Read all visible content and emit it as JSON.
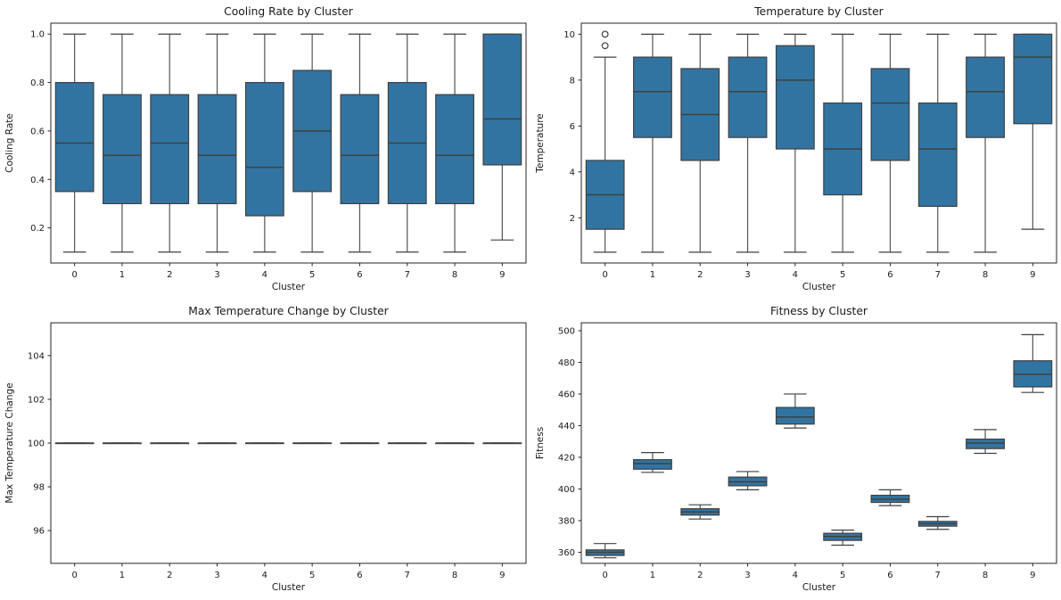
{
  "figure": {
    "background": "#ffffff"
  },
  "style": {
    "box_fill": "#3274a1",
    "box_line": "#404040",
    "whisker_color": "#555555",
    "spine_color": "#262626",
    "text_color": "#1a1a1a",
    "title_size": 12.3,
    "tick_size": 10,
    "label_size": 10.5
  },
  "chart_data": [
    {
      "id": "cooling-rate",
      "type": "boxplot",
      "title": "Cooling Rate by Cluster",
      "xlabel": "Cluster",
      "ylabel": "Cooling Rate",
      "categories": [
        "0",
        "1",
        "2",
        "3",
        "4",
        "5",
        "6",
        "7",
        "8",
        "9"
      ],
      "ylim": [
        0.055,
        1.045
      ],
      "ytick_values": [
        0.2,
        0.4,
        0.6,
        0.8,
        1.0
      ],
      "ytick_labels": [
        "0.2",
        "0.4",
        "0.6",
        "0.8",
        "1.0"
      ],
      "grid": false,
      "legend": null,
      "boxes": [
        {
          "low": 0.1,
          "q1": 0.35,
          "med": 0.55,
          "q3": 0.8,
          "high": 1.0,
          "outliers": []
        },
        {
          "low": 0.1,
          "q1": 0.3,
          "med": 0.5,
          "q3": 0.75,
          "high": 1.0,
          "outliers": []
        },
        {
          "low": 0.1,
          "q1": 0.3,
          "med": 0.55,
          "q3": 0.75,
          "high": 1.0,
          "outliers": []
        },
        {
          "low": 0.1,
          "q1": 0.3,
          "med": 0.5,
          "q3": 0.75,
          "high": 1.0,
          "outliers": []
        },
        {
          "low": 0.1,
          "q1": 0.25,
          "med": 0.45,
          "q3": 0.8,
          "high": 1.0,
          "outliers": []
        },
        {
          "low": 0.1,
          "q1": 0.35,
          "med": 0.6,
          "q3": 0.85,
          "high": 1.0,
          "outliers": []
        },
        {
          "low": 0.1,
          "q1": 0.3,
          "med": 0.5,
          "q3": 0.75,
          "high": 1.0,
          "outliers": []
        },
        {
          "low": 0.1,
          "q1": 0.3,
          "med": 0.55,
          "q3": 0.8,
          "high": 1.0,
          "outliers": []
        },
        {
          "low": 0.1,
          "q1": 0.3,
          "med": 0.5,
          "q3": 0.75,
          "high": 1.0,
          "outliers": []
        },
        {
          "low": 0.15,
          "q1": 0.46,
          "med": 0.65,
          "q3": 1.0,
          "high": 1.0,
          "outliers": []
        }
      ]
    },
    {
      "id": "temperature",
      "type": "boxplot",
      "title": "Temperature by Cluster",
      "xlabel": "Cluster",
      "ylabel": "Temperature",
      "categories": [
        "0",
        "1",
        "2",
        "3",
        "4",
        "5",
        "6",
        "7",
        "8",
        "9"
      ],
      "ylim": [
        0.03,
        10.48
      ],
      "ytick_values": [
        2,
        4,
        6,
        8,
        10
      ],
      "ytick_labels": [
        "2",
        "4",
        "6",
        "8",
        "10"
      ],
      "grid": false,
      "legend": null,
      "boxes": [
        {
          "low": 0.5,
          "q1": 1.5,
          "med": 3.0,
          "q3": 4.5,
          "high": 9.0,
          "outliers": [
            9.5,
            10.0
          ]
        },
        {
          "low": 0.5,
          "q1": 5.5,
          "med": 7.5,
          "q3": 9.0,
          "high": 10.0,
          "outliers": []
        },
        {
          "low": 0.5,
          "q1": 4.5,
          "med": 6.5,
          "q3": 8.5,
          "high": 10.0,
          "outliers": []
        },
        {
          "low": 0.5,
          "q1": 5.5,
          "med": 7.5,
          "q3": 9.0,
          "high": 10.0,
          "outliers": []
        },
        {
          "low": 0.5,
          "q1": 5.0,
          "med": 8.0,
          "q3": 9.5,
          "high": 10.0,
          "outliers": []
        },
        {
          "low": 0.5,
          "q1": 3.0,
          "med": 5.0,
          "q3": 7.0,
          "high": 10.0,
          "outliers": []
        },
        {
          "low": 0.5,
          "q1": 4.5,
          "med": 7.0,
          "q3": 8.5,
          "high": 10.0,
          "outliers": []
        },
        {
          "low": 0.5,
          "q1": 2.5,
          "med": 5.0,
          "q3": 7.0,
          "high": 10.0,
          "outliers": []
        },
        {
          "low": 0.5,
          "q1": 5.5,
          "med": 7.5,
          "q3": 9.0,
          "high": 10.0,
          "outliers": []
        },
        {
          "low": 1.5,
          "q1": 6.1,
          "med": 9.0,
          "q3": 10.0,
          "high": 10.0,
          "outliers": []
        }
      ]
    },
    {
      "id": "max-temperature-change",
      "type": "boxplot",
      "title": "Max Temperature Change by Cluster",
      "xlabel": "Cluster",
      "ylabel": "Max Temperature Change",
      "categories": [
        "0",
        "1",
        "2",
        "3",
        "4",
        "5",
        "6",
        "7",
        "8",
        "9"
      ],
      "ylim": [
        94.5,
        105.5
      ],
      "ytick_values": [
        96,
        98,
        100,
        102,
        104
      ],
      "ytick_labels": [
        "96",
        "98",
        "100",
        "102",
        "104"
      ],
      "grid": false,
      "legend": null,
      "boxes": [
        {
          "low": 100,
          "q1": 100,
          "med": 100,
          "q3": 100,
          "high": 100,
          "outliers": []
        },
        {
          "low": 100,
          "q1": 100,
          "med": 100,
          "q3": 100,
          "high": 100,
          "outliers": []
        },
        {
          "low": 100,
          "q1": 100,
          "med": 100,
          "q3": 100,
          "high": 100,
          "outliers": []
        },
        {
          "low": 100,
          "q1": 100,
          "med": 100,
          "q3": 100,
          "high": 100,
          "outliers": []
        },
        {
          "low": 100,
          "q1": 100,
          "med": 100,
          "q3": 100,
          "high": 100,
          "outliers": []
        },
        {
          "low": 100,
          "q1": 100,
          "med": 100,
          "q3": 100,
          "high": 100,
          "outliers": []
        },
        {
          "low": 100,
          "q1": 100,
          "med": 100,
          "q3": 100,
          "high": 100,
          "outliers": []
        },
        {
          "low": 100,
          "q1": 100,
          "med": 100,
          "q3": 100,
          "high": 100,
          "outliers": []
        },
        {
          "low": 100,
          "q1": 100,
          "med": 100,
          "q3": 100,
          "high": 100,
          "outliers": []
        },
        {
          "low": 100,
          "q1": 100,
          "med": 100,
          "q3": 100,
          "high": 100,
          "outliers": []
        }
      ]
    },
    {
      "id": "fitness",
      "type": "boxplot",
      "title": "Fitness by Cluster",
      "xlabel": "Cluster",
      "ylabel": "Fitness",
      "categories": [
        "0",
        "1",
        "2",
        "3",
        "4",
        "5",
        "6",
        "7",
        "8",
        "9"
      ],
      "ylim": [
        353,
        505
      ],
      "ytick_values": [
        360,
        380,
        400,
        420,
        440,
        460,
        480,
        500
      ],
      "ytick_labels": [
        "360",
        "380",
        "400",
        "420",
        "440",
        "460",
        "480",
        "500"
      ],
      "grid": false,
      "legend": null,
      "boxes": [
        {
          "low": 356.5,
          "q1": 358.0,
          "med": 360.0,
          "q3": 361.5,
          "high": 365.5,
          "outliers": []
        },
        {
          "low": 410.5,
          "q1": 412.5,
          "med": 416.0,
          "q3": 418.5,
          "high": 423.0,
          "outliers": []
        },
        {
          "low": 381.0,
          "q1": 383.5,
          "med": 385.5,
          "q3": 387.5,
          "high": 390.0,
          "outliers": []
        },
        {
          "low": 399.5,
          "q1": 402.0,
          "med": 404.5,
          "q3": 407.5,
          "high": 411.0,
          "outliers": []
        },
        {
          "low": 438.5,
          "q1": 441.0,
          "med": 445.5,
          "q3": 451.5,
          "high": 460.0,
          "outliers": []
        },
        {
          "low": 364.5,
          "q1": 367.5,
          "med": 370.0,
          "q3": 372.0,
          "high": 374.0,
          "outliers": []
        },
        {
          "low": 389.5,
          "q1": 391.5,
          "med": 393.5,
          "q3": 396.0,
          "high": 399.5,
          "outliers": []
        },
        {
          "low": 374.5,
          "q1": 376.5,
          "med": 378.0,
          "q3": 379.5,
          "high": 382.5,
          "outliers": []
        },
        {
          "low": 422.5,
          "q1": 425.5,
          "med": 429.0,
          "q3": 431.5,
          "high": 437.5,
          "outliers": []
        },
        {
          "low": 461.0,
          "q1": 464.5,
          "med": 472.5,
          "q3": 481.0,
          "high": 497.5,
          "outliers": []
        }
      ]
    }
  ]
}
